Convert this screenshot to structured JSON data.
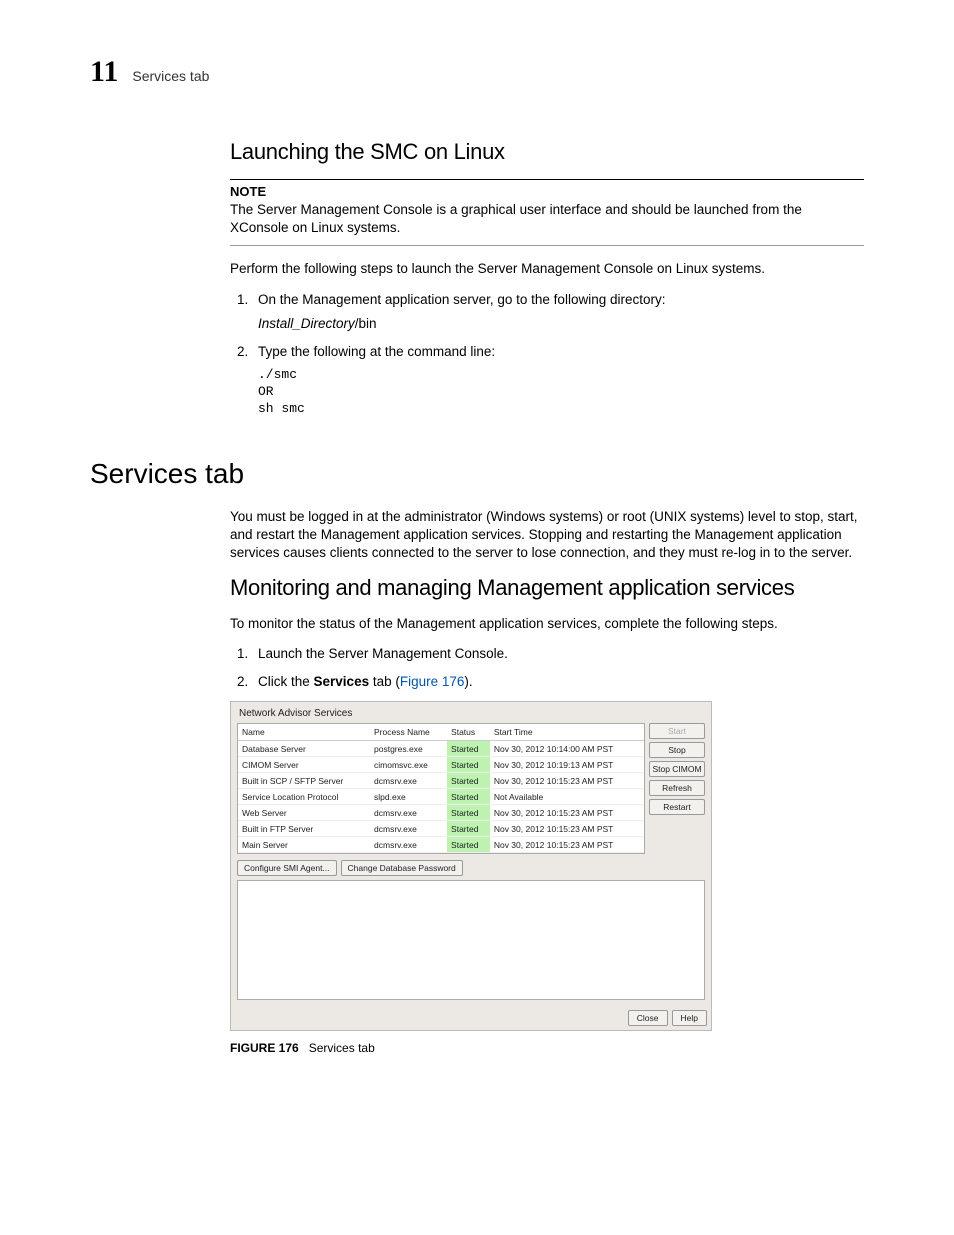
{
  "header": {
    "chapter": "11",
    "running": "Services tab"
  },
  "section1": {
    "title": "Launching the SMC on Linux",
    "noteLabel": "NOTE",
    "noteBody": "The Server Management Console is a graphical user interface and should be launched from the XConsole on Linux systems.",
    "lead": "Perform the following steps to launch the Server Management Console on Linux systems.",
    "step1": "On the Management application server, go to the following directory:",
    "step1subItalic": "Install_Directory",
    "step1subRest": "/bin",
    "step2": "Type the following at the command line:",
    "code1": "./smc",
    "code2": "OR",
    "code3": "sh smc"
  },
  "section2": {
    "title": "Services tab",
    "para": "You must be logged in at the administrator (Windows systems) or root (UNIX systems) level to stop, start, and restart the Management application services. Stopping and restarting the Management application services causes clients connected to the server to lose connection, and they must re-log in to the server."
  },
  "section3": {
    "title": "Monitoring and managing Management application services",
    "lead": "To monitor the status of the Management application services, complete the following steps.",
    "step1": "Launch the Server Management Console.",
    "step2a": "Click the ",
    "step2b": "Services",
    "step2c": " tab (",
    "step2link": "Figure 176",
    "step2d": ")."
  },
  "shot": {
    "title": "Network Advisor Services",
    "cols": {
      "c1": "Name",
      "c2": "Process Name",
      "c3": "Status",
      "c4": "Start Time"
    },
    "rows": [
      {
        "name": "Database Server",
        "proc": "postgres.exe",
        "status": "Started",
        "time": "Nov 30, 2012 10:14:00 AM PST",
        "green": true
      },
      {
        "name": "CIMOM Server",
        "proc": "cimomsvc.exe",
        "status": "Started",
        "time": "Nov 30, 2012 10:19:13 AM PST",
        "green": true
      },
      {
        "name": "Built in SCP / SFTP Server",
        "proc": "dcmsrv.exe",
        "status": "Started",
        "time": "Nov 30, 2012 10:15:23 AM PST",
        "green": true
      },
      {
        "name": "Service Location Protocol",
        "proc": "slpd.exe",
        "status": "Started",
        "time": "Not Available",
        "green": true
      },
      {
        "name": "Web Server",
        "proc": "dcmsrv.exe",
        "status": "Started",
        "time": "Nov 30, 2012 10:15:23 AM PST",
        "green": true
      },
      {
        "name": "Built in FTP Server",
        "proc": "dcmsrv.exe",
        "status": "Started",
        "time": "Nov 30, 2012 10:15:23 AM PST",
        "green": true
      },
      {
        "name": "Main Server",
        "proc": "dcmsrv.exe",
        "status": "Started",
        "time": "Nov 30, 2012 10:15:23 AM PST",
        "green": true
      }
    ],
    "buttons": {
      "start": "Start",
      "stop": "Stop",
      "stopCimom": "Stop CIMOM",
      "refresh": "Refresh",
      "restart": "Restart"
    },
    "lower": {
      "b1": "Configure SMI Agent...",
      "b2": "Change Database Password"
    },
    "footer": {
      "close": "Close",
      "help": "Help"
    }
  },
  "fig": {
    "label": "FIGURE 176",
    "caption": "Services tab"
  },
  "colors": {
    "statusGreen": "#bdf2b0",
    "panelBg": "#ece9e4"
  }
}
